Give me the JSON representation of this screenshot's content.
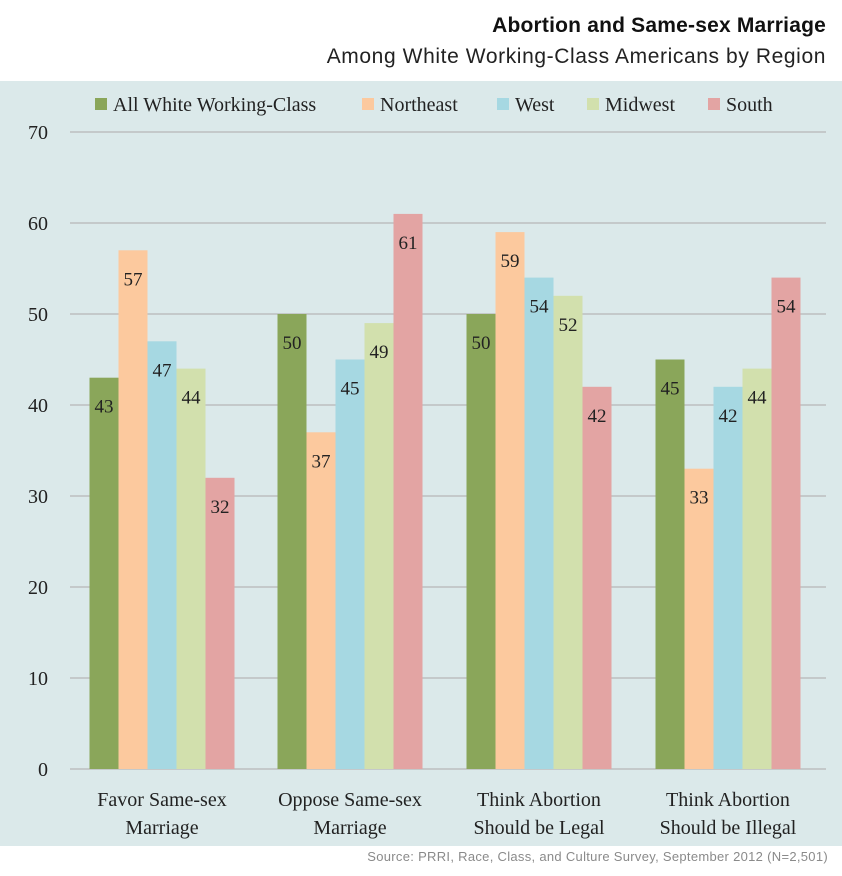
{
  "title": "Abortion and Same-sex Marriage",
  "subtitle": "Among White Working-Class Americans by Region",
  "source": "Source: PRRI, Race, Class, and Culture Survey, September 2012 (N=2,501)",
  "chart_data": {
    "type": "bar",
    "categories": [
      [
        "Favor Same-sex",
        "Marriage"
      ],
      [
        "Oppose Same-sex",
        "Marriage"
      ],
      [
        "Think Abortion",
        "Should be Legal"
      ],
      [
        "Think Abortion",
        "Should be Illegal"
      ]
    ],
    "series": [
      {
        "name": "All White Working-Class",
        "color": "#8aa65a",
        "values": [
          43,
          50,
          50,
          45
        ]
      },
      {
        "name": "Northeast",
        "color": "#fcc99e",
        "values": [
          57,
          37,
          59,
          33
        ]
      },
      {
        "name": "West",
        "color": "#a6d8e2",
        "values": [
          47,
          45,
          54,
          42
        ]
      },
      {
        "name": "Midwest",
        "color": "#d2e0ad",
        "values": [
          44,
          49,
          52,
          44
        ]
      },
      {
        "name": "South",
        "color": "#e3a4a3",
        "values": [
          32,
          61,
          42,
          54
        ]
      }
    ],
    "ylim": [
      0,
      70
    ],
    "yticks": [
      0,
      10,
      20,
      30,
      40,
      50,
      60,
      70
    ],
    "grid": true,
    "legend_position": "top"
  }
}
